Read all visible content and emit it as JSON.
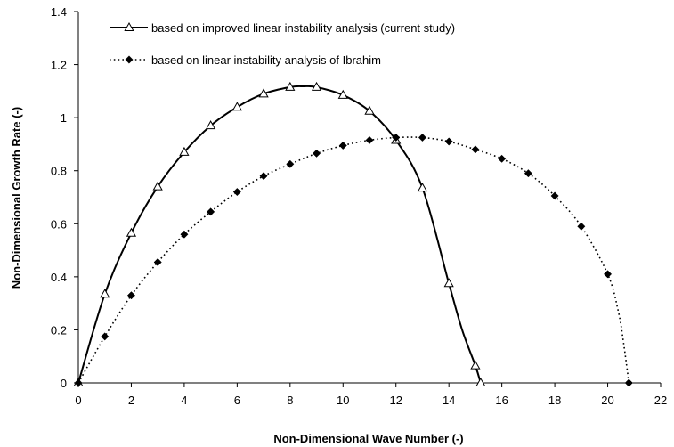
{
  "chart_data": {
    "type": "line",
    "xlabel": "Non-Dimensional Wave Number (-)",
    "ylabel": "Non-Dimensional Growth Rate (-)",
    "xlim": [
      0,
      22
    ],
    "ylim": [
      0,
      1.4
    ],
    "xticks": [
      "0",
      "2",
      "4",
      "6",
      "8",
      "10",
      "12",
      "14",
      "16",
      "18",
      "20",
      "22"
    ],
    "yticks": [
      "0",
      "0.2",
      "0.4",
      "0.6",
      "0.8",
      "1",
      "1.2",
      "1.4"
    ],
    "grid": false,
    "legend_position": "top-left",
    "series": [
      {
        "name": "based on improved linear instability analysis (current study)",
        "line_style": "solid",
        "marker": "open-triangle",
        "color": "#000000",
        "x": [
          0,
          1,
          2,
          3,
          4,
          5,
          6,
          7,
          8,
          9,
          10,
          11,
          12,
          13,
          14,
          15,
          15.2
        ],
        "y": [
          0,
          0.335,
          0.565,
          0.74,
          0.87,
          0.97,
          1.04,
          1.09,
          1.115,
          1.115,
          1.085,
          1.025,
          0.915,
          0.735,
          0.375,
          0.065,
          0
        ],
        "curve_x": [
          0,
          1,
          2,
          3,
          4,
          5,
          6,
          7,
          8,
          8.5,
          9,
          10,
          11,
          12,
          13,
          14,
          14.5,
          15,
          15.2
        ],
        "curve_y": [
          0,
          0.335,
          0.565,
          0.74,
          0.87,
          0.97,
          1.04,
          1.09,
          1.115,
          1.118,
          1.115,
          1.085,
          1.025,
          0.915,
          0.735,
          0.375,
          0.2,
          0.065,
          0
        ]
      },
      {
        "name": "based on linear instability analysis of Ibrahim",
        "line_style": "dotted",
        "marker": "filled-diamond",
        "color": "#000000",
        "x": [
          0,
          1,
          2,
          3,
          4,
          5,
          6,
          7,
          8,
          9,
          10,
          11,
          12,
          13,
          14,
          15,
          16,
          17,
          18,
          19,
          20,
          20.8
        ],
        "y": [
          0,
          0.175,
          0.33,
          0.455,
          0.56,
          0.645,
          0.72,
          0.78,
          0.825,
          0.865,
          0.895,
          0.915,
          0.925,
          0.925,
          0.91,
          0.88,
          0.845,
          0.79,
          0.705,
          0.59,
          0.41,
          0
        ],
        "curve_x": [
          0,
          1,
          2,
          3,
          4,
          5,
          6,
          7,
          8,
          9,
          10,
          11,
          12,
          13,
          14,
          15,
          16,
          17,
          18,
          19,
          20,
          20.4,
          20.6,
          20.8
        ],
        "curve_y": [
          0,
          0.175,
          0.33,
          0.455,
          0.56,
          0.645,
          0.72,
          0.78,
          0.825,
          0.865,
          0.895,
          0.915,
          0.925,
          0.925,
          0.91,
          0.88,
          0.845,
          0.79,
          0.705,
          0.59,
          0.41,
          0.27,
          0.15,
          0
        ]
      }
    ]
  }
}
